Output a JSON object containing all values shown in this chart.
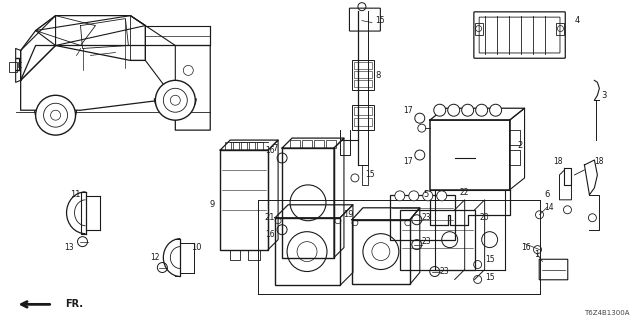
{
  "diagram_id": "T6Z4B1300A",
  "bg_color": "#ffffff",
  "line_color": "#1a1a1a",
  "figsize": [
    6.4,
    3.2
  ],
  "dpi": 100,
  "gray": "#888888",
  "lgray": "#cccccc"
}
